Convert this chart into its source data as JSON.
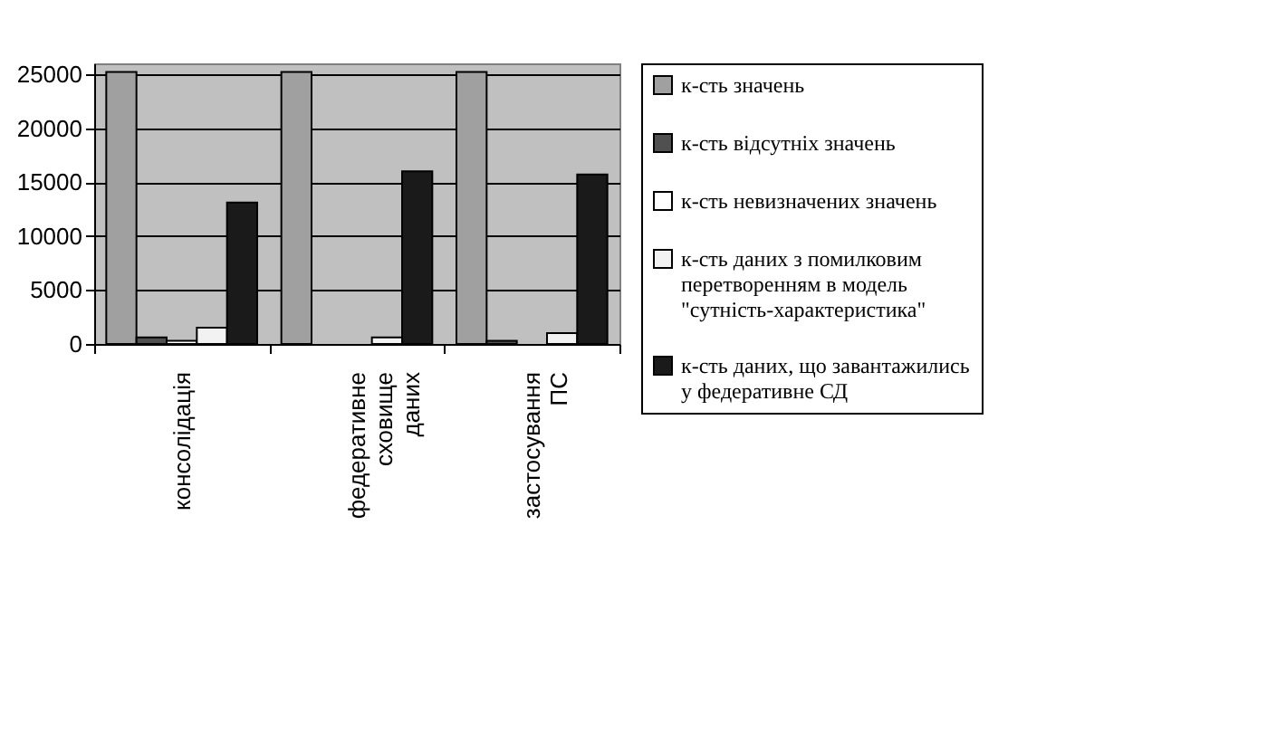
{
  "chart_data": {
    "type": "bar",
    "categories": [
      "консолідація",
      "федеративне сховище даних",
      "застосування ПС"
    ],
    "series": [
      {
        "name": "к-сть значень",
        "color": "#a0a0a0",
        "values": [
          25200,
          25200,
          25200
        ]
      },
      {
        "name": "к-сть відсутніх значень",
        "color": "#505050",
        "values": [
          600,
          null,
          300
        ]
      },
      {
        "name": "к-сть невизначених значень",
        "color": "#ffffff",
        "values": [
          300,
          null,
          null
        ]
      },
      {
        "name": "к-сть даних з помилковим перетворенням в модель \"сутність-характеристика\"",
        "color": "#f2f2f2",
        "values": [
          1500,
          600,
          1000
        ]
      },
      {
        "name": "к-сть даних, що завантажились у федеративне СД",
        "color": "#1a1a1a",
        "values": [
          13100,
          16000,
          15700
        ]
      }
    ],
    "ylim": [
      0,
      26000
    ],
    "yticks": [
      0,
      5000,
      10000,
      15000,
      20000,
      25000
    ],
    "grid": "y",
    "legend": "right"
  }
}
